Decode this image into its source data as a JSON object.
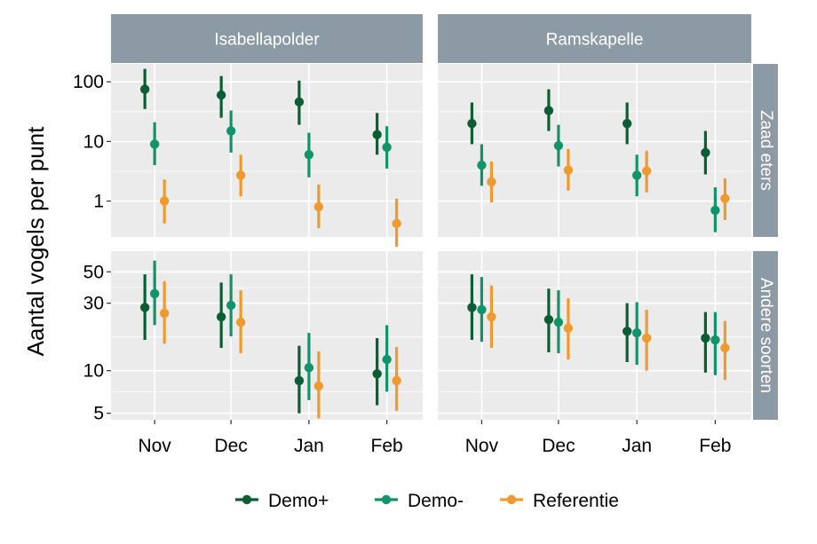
{
  "chart_data": {
    "type": "errorbar",
    "ylabel": "Aantal vogels per punt",
    "xlabel": "",
    "categories": [
      "Nov",
      "Dec",
      "Jan",
      "Feb"
    ],
    "col_facets": [
      "Isabellapolder",
      "Ramskapelle"
    ],
    "row_facets": [
      "Zaad eters",
      "Andere soorten"
    ],
    "y_scale": "log10",
    "row_axes": [
      {
        "ticks": [
          1,
          10,
          100
        ],
        "tick_labels": [
          "1",
          "10",
          "100"
        ],
        "ylim": [
          0.25,
          200
        ]
      },
      {
        "ticks": [
          5,
          10,
          30,
          50
        ],
        "tick_labels": [
          "5",
          "10",
          "30",
          "50"
        ],
        "ylim": [
          4.5,
          70
        ]
      }
    ],
    "legend": {
      "position": "bottom",
      "entries": [
        {
          "name": "Demo+",
          "color": "#0b5e33"
        },
        {
          "name": "Demo-",
          "color": "#12946a"
        },
        {
          "name": "Referentie",
          "color": "#ee9a2e"
        }
      ]
    },
    "panels": [
      {
        "col": "Isabellapolder",
        "row": "Zaad eters",
        "series": [
          {
            "name": "Demo+",
            "mean": [
              75,
              60,
              46,
              13
            ],
            "lower": [
              35,
              25,
              19,
              6
            ],
            "upper": [
              165,
              125,
              105,
              30
            ]
          },
          {
            "name": "Demo-",
            "mean": [
              9,
              15,
              6,
              8
            ],
            "lower": [
              4,
              6.5,
              2.5,
              3.5
            ],
            "upper": [
              21,
              33,
              14,
              18
            ]
          },
          {
            "name": "Referentie",
            "mean": [
              1.0,
              2.7,
              0.8,
              0.42
            ],
            "lower": [
              0.42,
              1.2,
              0.35,
              0.17
            ],
            "upper": [
              2.3,
              6.0,
              1.9,
              1.1
            ]
          }
        ]
      },
      {
        "col": "Ramskapelle",
        "row": "Zaad eters",
        "series": [
          {
            "name": "Demo+",
            "mean": [
              20,
              33,
              20,
              6.5
            ],
            "lower": [
              9,
              15,
              9,
              2.8
            ],
            "upper": [
              45,
              75,
              45,
              15
            ]
          },
          {
            "name": "Demo-",
            "mean": [
              4,
              8.5,
              2.7,
              0.7
            ],
            "lower": [
              1.8,
              3.8,
              1.2,
              0.3
            ],
            "upper": [
              9,
              19,
              6,
              1.7
            ]
          },
          {
            "name": "Referentie",
            "mean": [
              2.1,
              3.3,
              3.2,
              1.1
            ],
            "lower": [
              0.95,
              1.5,
              1.4,
              0.48
            ],
            "upper": [
              4.6,
              7.5,
              7.0,
              2.4
            ]
          }
        ]
      },
      {
        "col": "Isabellapolder",
        "row": "Andere soorten",
        "series": [
          {
            "name": "Demo+",
            "mean": [
              28,
              24,
              8.5,
              9.5
            ],
            "lower": [
              16.5,
              14.5,
              5,
              5.7
            ],
            "upper": [
              48,
              42,
              15,
              17
            ]
          },
          {
            "name": "Demo-",
            "mean": [
              35,
              29,
              10.5,
              12
            ],
            "lower": [
              21,
              17.5,
              6.2,
              7.1
            ],
            "upper": [
              60,
              48,
              18.5,
              21
            ]
          },
          {
            "name": "Referentie",
            "mean": [
              25.5,
              22,
              7.8,
              8.5
            ],
            "lower": [
              15.5,
              13.3,
              4.6,
              5.2
            ],
            "upper": [
              43,
              37,
              13.7,
              14.7
            ]
          }
        ]
      },
      {
        "col": "Ramskapelle",
        "row": "Andere soorten",
        "series": [
          {
            "name": "Demo+",
            "mean": [
              28,
              23,
              19,
              17
            ],
            "lower": [
              16.5,
              13.5,
              11.5,
              9.7
            ],
            "upper": [
              48,
              38,
              30,
              26
            ]
          },
          {
            "name": "Demo-",
            "mean": [
              27,
              22,
              18.5,
              16.5
            ],
            "lower": [
              16,
              13.3,
              11,
              9.3
            ],
            "upper": [
              46,
              37,
              30.5,
              26
            ]
          },
          {
            "name": "Referentie",
            "mean": [
              24,
              20,
              17,
              14.5
            ],
            "lower": [
              14.5,
              12,
              10,
              8.6
            ],
            "upper": [
              40,
              32.5,
              27,
              22.5
            ]
          }
        ]
      }
    ]
  }
}
